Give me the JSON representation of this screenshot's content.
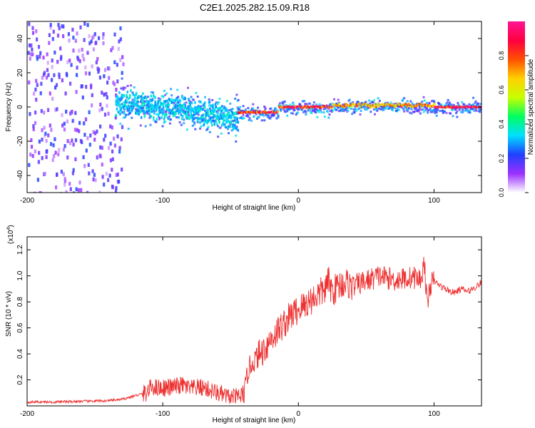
{
  "chart_data": [
    {
      "type": "heatmap",
      "title": "C2E1.2025.282.15.09.R18",
      "xlabel": "Height of straight line (km)",
      "ylabel": "Frequency (Hz)",
      "xlim": [
        -200,
        135
      ],
      "ylim": [
        -50,
        50
      ],
      "xticks": [
        -200,
        -100,
        0,
        100
      ],
      "xtick_labels": [
        "-200",
        "-100",
        "0",
        "100"
      ],
      "yticks": [
        -40,
        -20,
        0,
        20,
        40
      ],
      "ytick_labels": [
        "-40",
        "-20",
        "0",
        "20",
        "40"
      ],
      "colorbar": {
        "label": "Normalized spectral amplitude",
        "range": [
          0,
          1
        ],
        "ticks": [
          0.0,
          0.2,
          0.4,
          0.6,
          0.8
        ],
        "tick_labels": [
          "0.0",
          "0.2",
          "0.4",
          "0.6",
          "0.8"
        ],
        "colors": [
          "#ffffff",
          "#9b30ff",
          "#2040ff",
          "#00e0ff",
          "#00ff60",
          "#c8ff00",
          "#ffd000",
          "#ff5000",
          "#ff0040",
          "#ff1493"
        ]
      },
      "features": [
        {
          "x_range": [
            -200,
            -130
          ],
          "freq_center": 0,
          "freq_spread": 50,
          "amplitude": 0.15,
          "description": "scattered noise"
        },
        {
          "x_range": [
            -135,
            -45
          ],
          "freq_center_start": 3,
          "freq_center_end": -6,
          "freq_spread": 8,
          "amplitude": 0.35
        },
        {
          "x_range": [
            -45,
            -15
          ],
          "freq_center": -3,
          "freq_spread": 2,
          "amplitude": 0.9
        },
        {
          "x_range": [
            -15,
            25
          ],
          "freq_center": 0,
          "freq_spread": 2,
          "amplitude": 0.9
        },
        {
          "x_range": [
            25,
            100
          ],
          "freq_center": 1,
          "freq_spread": 3,
          "amplitude": 0.75
        },
        {
          "x_range": [
            100,
            135
          ],
          "freq_center": 0,
          "freq_spread": 1,
          "amplitude": 0.95
        }
      ]
    },
    {
      "type": "line",
      "xlabel": "Height of straight line (km)",
      "ylabel": "SNR (10 * v/v)",
      "scale_label_base": "(x10",
      "scale_label_exp": "4",
      "scale_label_close": ")",
      "xlim": [
        -200,
        135
      ],
      "ylim": [
        0,
        1.3
      ],
      "xticks": [
        -200,
        -100,
        0,
        100
      ],
      "xtick_labels": [
        "-200",
        "-100",
        "0",
        "100"
      ],
      "yticks": [
        0.2,
        0.4,
        0.6,
        0.8,
        1.0,
        1.2
      ],
      "ytick_labels": [
        "0.2",
        "0.4",
        "0.6",
        "0.8",
        "1.0",
        "1.2"
      ],
      "series": [
        {
          "name": "SNR",
          "color": "#ee3030",
          "x": [
            -200,
            -180,
            -160,
            -140,
            -130,
            -120,
            -112,
            -108,
            -104,
            -100,
            -95,
            -90,
            -85,
            -80,
            -75,
            -70,
            -65,
            -60,
            -55,
            -50,
            -45,
            -40,
            -37,
            -34,
            -30,
            -25,
            -20,
            -15,
            -10,
            -5,
            0,
            5,
            10,
            15,
            20,
            22,
            25,
            30,
            35,
            40,
            50,
            60,
            70,
            80,
            85,
            90,
            93,
            95,
            97,
            100,
            105,
            110,
            115,
            120,
            125,
            130,
            135
          ],
          "values": [
            0.03,
            0.03,
            0.035,
            0.04,
            0.05,
            0.08,
            0.1,
            0.15,
            0.14,
            0.14,
            0.14,
            0.15,
            0.16,
            0.13,
            0.14,
            0.14,
            0.12,
            0.1,
            0.08,
            0.06,
            0.07,
            0.08,
            0.28,
            0.33,
            0.38,
            0.44,
            0.52,
            0.58,
            0.64,
            0.7,
            0.74,
            0.78,
            0.82,
            0.86,
            0.9,
            0.96,
            0.88,
            0.93,
            0.95,
            0.92,
            0.96,
            1.0,
            0.97,
            0.98,
            0.99,
            0.97,
            1.1,
            0.75,
            0.93,
            0.96,
            0.92,
            0.89,
            0.87,
            0.9,
            0.88,
            0.91,
            0.95
          ]
        }
      ]
    }
  ]
}
